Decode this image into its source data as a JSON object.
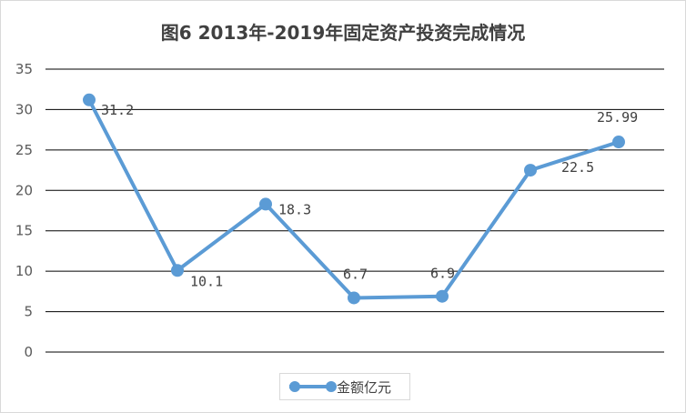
{
  "chart_data": {
    "type": "line",
    "title": "图6 2013年-2019年固定资产投资完成情况",
    "xlabel": "",
    "ylabel": "",
    "ylim": [
      0,
      35
    ],
    "yticks": [
      0,
      5,
      10,
      15,
      20,
      25,
      30,
      35
    ],
    "grid": true,
    "legend_position": "bottom",
    "x": [
      1,
      2,
      3,
      4,
      5,
      6,
      7
    ],
    "series": [
      {
        "name": "金额亿元",
        "values": [
          31.2,
          10.1,
          18.3,
          6.7,
          6.9,
          22.5,
          25.99
        ],
        "labels": [
          "31.2",
          "10.1",
          "18.3",
          "6.7",
          "6.9",
          "22.5",
          "25.99"
        ]
      }
    ],
    "colors": {
      "series": "#5b9bd5",
      "grid": "#000000",
      "text": "#404040"
    }
  }
}
